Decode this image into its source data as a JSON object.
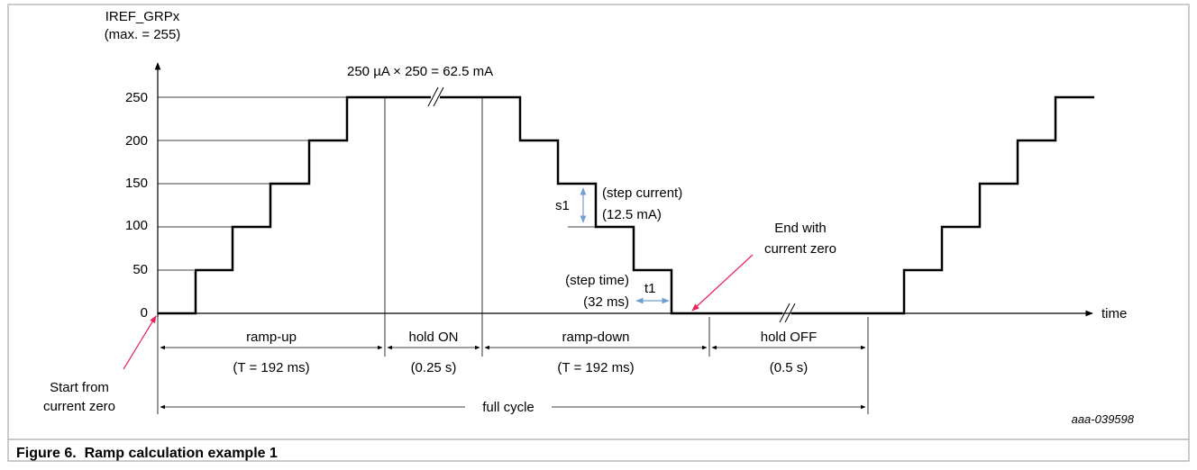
{
  "figure": {
    "caption": "Figure 6.  Ramp calculation example 1",
    "id_code": "aaa-039598"
  },
  "axes": {
    "y_label_1": "IREF_GRPx",
    "y_label_2": "(max. = 255)",
    "x_label": "time",
    "y_ticks": [
      "250",
      "200",
      "150",
      "100",
      "50",
      "0"
    ]
  },
  "annotations": {
    "max_current": "250 µA × 250 = 62.5 mA",
    "step_current_1": "(step current)",
    "step_current_2": "(12.5 mA)",
    "s1": "s1",
    "step_time_1": "(step time)",
    "step_time_2": "(32 ms)",
    "t1": "t1",
    "end_1": "End with",
    "end_2": "current zero",
    "start_1": "Start from",
    "start_2": "current zero"
  },
  "phases": {
    "ramp_up": "ramp-up",
    "ramp_up_time": "(T = 192 ms)",
    "hold_on": "hold ON",
    "hold_on_time": "(0.25 s)",
    "ramp_down": "ramp-down",
    "ramp_down_time": "(T = 192 ms)",
    "hold_off": "hold OFF",
    "hold_off_time": "(0.5 s)",
    "full_cycle": "full cycle"
  },
  "colors": {
    "arrow_blue": "#6f9fd8",
    "arrow_red": "#e8245a",
    "line": "#000000",
    "border": "#9a9a9a"
  }
}
